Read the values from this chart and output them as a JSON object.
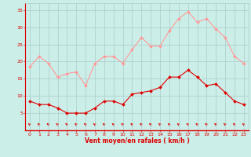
{
  "hours": [
    0,
    1,
    2,
    3,
    4,
    5,
    6,
    7,
    8,
    9,
    10,
    11,
    12,
    13,
    14,
    15,
    16,
    17,
    18,
    19,
    20,
    21,
    22,
    23
  ],
  "vent_moyen": [
    8.5,
    7.5,
    7.5,
    6.5,
    5.0,
    5.0,
    5.0,
    6.5,
    8.5,
    8.5,
    7.5,
    10.5,
    11.0,
    11.5,
    12.5,
    15.5,
    15.5,
    17.5,
    15.5,
    13.0,
    13.5,
    11.0,
    8.5,
    7.5
  ],
  "rafales": [
    18.5,
    21.5,
    19.5,
    15.5,
    16.5,
    17.0,
    13.0,
    19.5,
    21.5,
    21.5,
    19.5,
    23.5,
    27.0,
    24.5,
    24.5,
    29.0,
    32.5,
    34.5,
    31.5,
    32.5,
    29.5,
    27.0,
    21.5,
    19.5
  ],
  "xlabel": "Vent moyen/en rafales ( km/h )",
  "background_color": "#cceee8",
  "grid_color": "#aacccc",
  "line_color_moyen": "#dd0000",
  "line_color_rafales": "#ff9999",
  "arrow_color": "#dd0000",
  "ylim": [
    0,
    37
  ],
  "yticks": [
    5,
    10,
    15,
    20,
    25,
    30,
    35
  ],
  "xticks": [
    0,
    1,
    2,
    3,
    4,
    5,
    6,
    7,
    8,
    9,
    10,
    11,
    12,
    13,
    14,
    15,
    16,
    17,
    18,
    19,
    20,
    21,
    22,
    23
  ]
}
